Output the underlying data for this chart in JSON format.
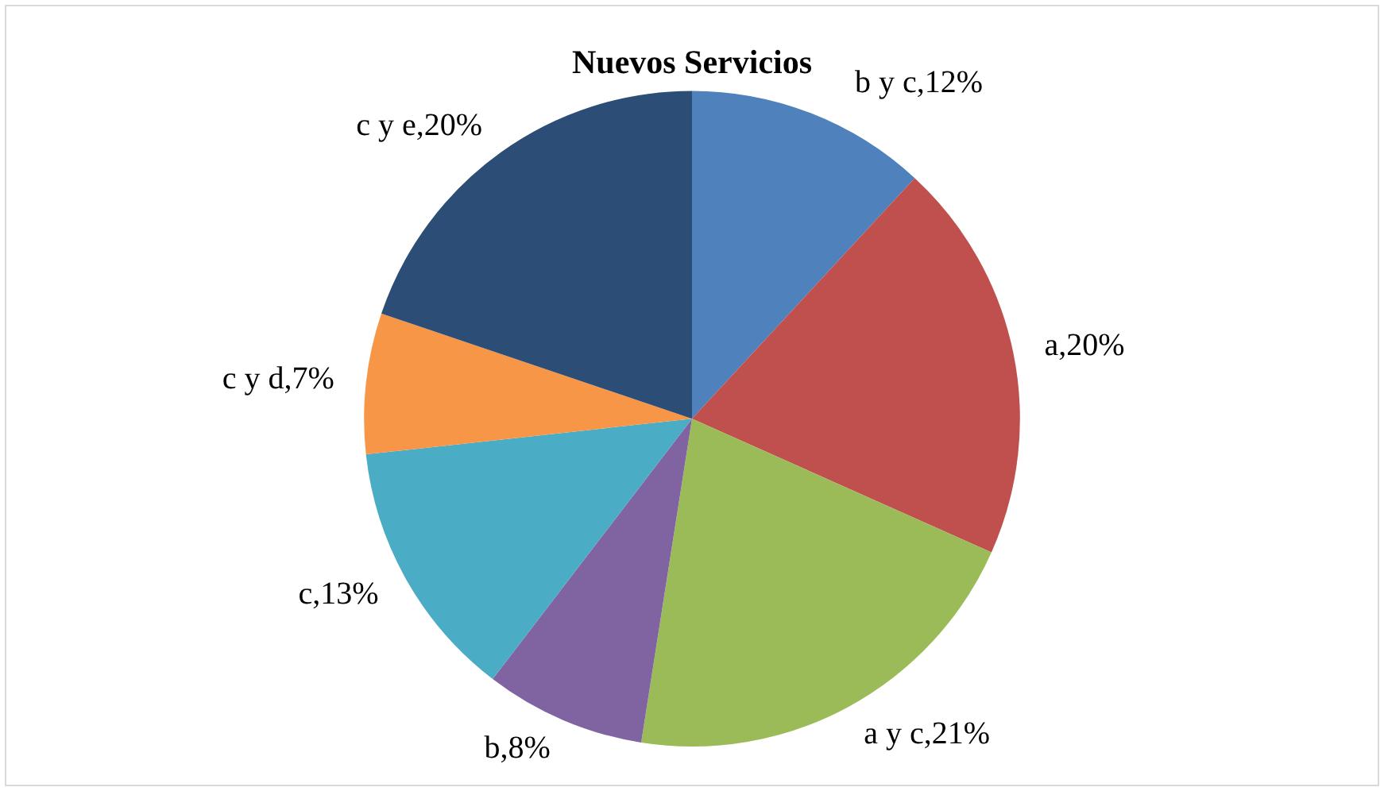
{
  "chart_data": {
    "type": "pie",
    "title": "Nuevos Servicios",
    "categories": [
      "b y c",
      "a",
      "a y c",
      "b",
      "c",
      "c y d",
      "c y e"
    ],
    "values": [
      12,
      20,
      21,
      8,
      13,
      7,
      20
    ],
    "colors": [
      "#4f81bd",
      "#c0504d",
      "#9bbb59",
      "#8064a2",
      "#4bacc6",
      "#f79646",
      "#2c4d75"
    ],
    "value_labels": [
      ",12%",
      ",20%",
      ",21%",
      ",8%",
      ",13%",
      ",7%",
      ",20%"
    ],
    "legend": false
  }
}
